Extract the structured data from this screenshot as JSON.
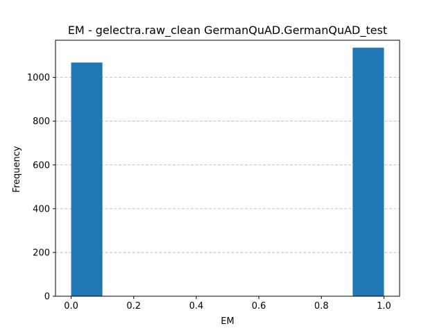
{
  "chart_data": {
    "type": "bar",
    "title": "EM - gelectra.raw_clean GermanQuAD.GermanQuAD_test",
    "xlabel": "EM",
    "ylabel": "Frequency",
    "xlim": [
      -0.05,
      1.05
    ],
    "ylim": [
      0,
      1170
    ],
    "grid": {
      "y": true,
      "x": false,
      "style": "dashed"
    },
    "bar_color": "#1f77b4",
    "bins": [
      {
        "x0": 0.0,
        "x1": 0.1,
        "value": 1068
      },
      {
        "x0": 0.1,
        "x1": 0.2,
        "value": 0
      },
      {
        "x0": 0.2,
        "x1": 0.3,
        "value": 0
      },
      {
        "x0": 0.3,
        "x1": 0.4,
        "value": 0
      },
      {
        "x0": 0.4,
        "x1": 0.5,
        "value": 0
      },
      {
        "x0": 0.5,
        "x1": 0.6,
        "value": 0
      },
      {
        "x0": 0.6,
        "x1": 0.7,
        "value": 0
      },
      {
        "x0": 0.7,
        "x1": 0.8,
        "value": 0
      },
      {
        "x0": 0.8,
        "x1": 0.9,
        "value": 0
      },
      {
        "x0": 0.9,
        "x1": 1.0,
        "value": 1136
      }
    ],
    "xticks": [
      {
        "value": 0.0,
        "label": "0.0"
      },
      {
        "value": 0.2,
        "label": "0.2"
      },
      {
        "value": 0.4,
        "label": "0.4"
      },
      {
        "value": 0.6,
        "label": "0.6"
      },
      {
        "value": 0.8,
        "label": "0.8"
      },
      {
        "value": 1.0,
        "label": "1.0"
      }
    ],
    "yticks": [
      {
        "value": 0,
        "label": "0"
      },
      {
        "value": 200,
        "label": "200"
      },
      {
        "value": 400,
        "label": "400"
      },
      {
        "value": 600,
        "label": "600"
      },
      {
        "value": 800,
        "label": "800"
      },
      {
        "value": 1000,
        "label": "1000"
      }
    ]
  }
}
